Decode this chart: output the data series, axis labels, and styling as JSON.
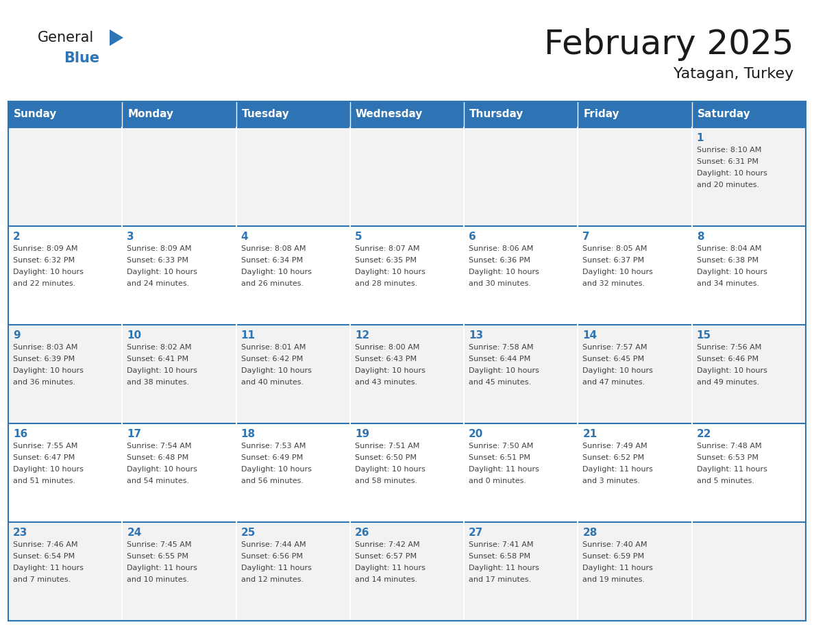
{
  "title": "February 2025",
  "subtitle": "Yatagan, Turkey",
  "days_of_week": [
    "Sunday",
    "Monday",
    "Tuesday",
    "Wednesday",
    "Thursday",
    "Friday",
    "Saturday"
  ],
  "header_bg": "#2E74B5",
  "header_text_color": "#FFFFFF",
  "cell_bg_odd": "#F2F2F2",
  "cell_bg_even": "#FFFFFF",
  "cell_border_color": "#2E75B6",
  "title_color": "#1A1A1A",
  "day_number_color": "#2E75B6",
  "info_text_color": "#404040",
  "logo_general_color": "#1A1A1A",
  "logo_blue_color": "#2E75B6",
  "weeks": [
    [
      {
        "day": null,
        "info": ""
      },
      {
        "day": null,
        "info": ""
      },
      {
        "day": null,
        "info": ""
      },
      {
        "day": null,
        "info": ""
      },
      {
        "day": null,
        "info": ""
      },
      {
        "day": null,
        "info": ""
      },
      {
        "day": 1,
        "info": "Sunrise: 8:10 AM\nSunset: 6:31 PM\nDaylight: 10 hours\nand 20 minutes."
      }
    ],
    [
      {
        "day": 2,
        "info": "Sunrise: 8:09 AM\nSunset: 6:32 PM\nDaylight: 10 hours\nand 22 minutes."
      },
      {
        "day": 3,
        "info": "Sunrise: 8:09 AM\nSunset: 6:33 PM\nDaylight: 10 hours\nand 24 minutes."
      },
      {
        "day": 4,
        "info": "Sunrise: 8:08 AM\nSunset: 6:34 PM\nDaylight: 10 hours\nand 26 minutes."
      },
      {
        "day": 5,
        "info": "Sunrise: 8:07 AM\nSunset: 6:35 PM\nDaylight: 10 hours\nand 28 minutes."
      },
      {
        "day": 6,
        "info": "Sunrise: 8:06 AM\nSunset: 6:36 PM\nDaylight: 10 hours\nand 30 minutes."
      },
      {
        "day": 7,
        "info": "Sunrise: 8:05 AM\nSunset: 6:37 PM\nDaylight: 10 hours\nand 32 minutes."
      },
      {
        "day": 8,
        "info": "Sunrise: 8:04 AM\nSunset: 6:38 PM\nDaylight: 10 hours\nand 34 minutes."
      }
    ],
    [
      {
        "day": 9,
        "info": "Sunrise: 8:03 AM\nSunset: 6:39 PM\nDaylight: 10 hours\nand 36 minutes."
      },
      {
        "day": 10,
        "info": "Sunrise: 8:02 AM\nSunset: 6:41 PM\nDaylight: 10 hours\nand 38 minutes."
      },
      {
        "day": 11,
        "info": "Sunrise: 8:01 AM\nSunset: 6:42 PM\nDaylight: 10 hours\nand 40 minutes."
      },
      {
        "day": 12,
        "info": "Sunrise: 8:00 AM\nSunset: 6:43 PM\nDaylight: 10 hours\nand 43 minutes."
      },
      {
        "day": 13,
        "info": "Sunrise: 7:58 AM\nSunset: 6:44 PM\nDaylight: 10 hours\nand 45 minutes."
      },
      {
        "day": 14,
        "info": "Sunrise: 7:57 AM\nSunset: 6:45 PM\nDaylight: 10 hours\nand 47 minutes."
      },
      {
        "day": 15,
        "info": "Sunrise: 7:56 AM\nSunset: 6:46 PM\nDaylight: 10 hours\nand 49 minutes."
      }
    ],
    [
      {
        "day": 16,
        "info": "Sunrise: 7:55 AM\nSunset: 6:47 PM\nDaylight: 10 hours\nand 51 minutes."
      },
      {
        "day": 17,
        "info": "Sunrise: 7:54 AM\nSunset: 6:48 PM\nDaylight: 10 hours\nand 54 minutes."
      },
      {
        "day": 18,
        "info": "Sunrise: 7:53 AM\nSunset: 6:49 PM\nDaylight: 10 hours\nand 56 minutes."
      },
      {
        "day": 19,
        "info": "Sunrise: 7:51 AM\nSunset: 6:50 PM\nDaylight: 10 hours\nand 58 minutes."
      },
      {
        "day": 20,
        "info": "Sunrise: 7:50 AM\nSunset: 6:51 PM\nDaylight: 11 hours\nand 0 minutes."
      },
      {
        "day": 21,
        "info": "Sunrise: 7:49 AM\nSunset: 6:52 PM\nDaylight: 11 hours\nand 3 minutes."
      },
      {
        "day": 22,
        "info": "Sunrise: 7:48 AM\nSunset: 6:53 PM\nDaylight: 11 hours\nand 5 minutes."
      }
    ],
    [
      {
        "day": 23,
        "info": "Sunrise: 7:46 AM\nSunset: 6:54 PM\nDaylight: 11 hours\nand 7 minutes."
      },
      {
        "day": 24,
        "info": "Sunrise: 7:45 AM\nSunset: 6:55 PM\nDaylight: 11 hours\nand 10 minutes."
      },
      {
        "day": 25,
        "info": "Sunrise: 7:44 AM\nSunset: 6:56 PM\nDaylight: 11 hours\nand 12 minutes."
      },
      {
        "day": 26,
        "info": "Sunrise: 7:42 AM\nSunset: 6:57 PM\nDaylight: 11 hours\nand 14 minutes."
      },
      {
        "day": 27,
        "info": "Sunrise: 7:41 AM\nSunset: 6:58 PM\nDaylight: 11 hours\nand 17 minutes."
      },
      {
        "day": 28,
        "info": "Sunrise: 7:40 AM\nSunset: 6:59 PM\nDaylight: 11 hours\nand 19 minutes."
      },
      {
        "day": null,
        "info": ""
      }
    ]
  ],
  "figsize": [
    11.88,
    9.18
  ],
  "dpi": 100
}
